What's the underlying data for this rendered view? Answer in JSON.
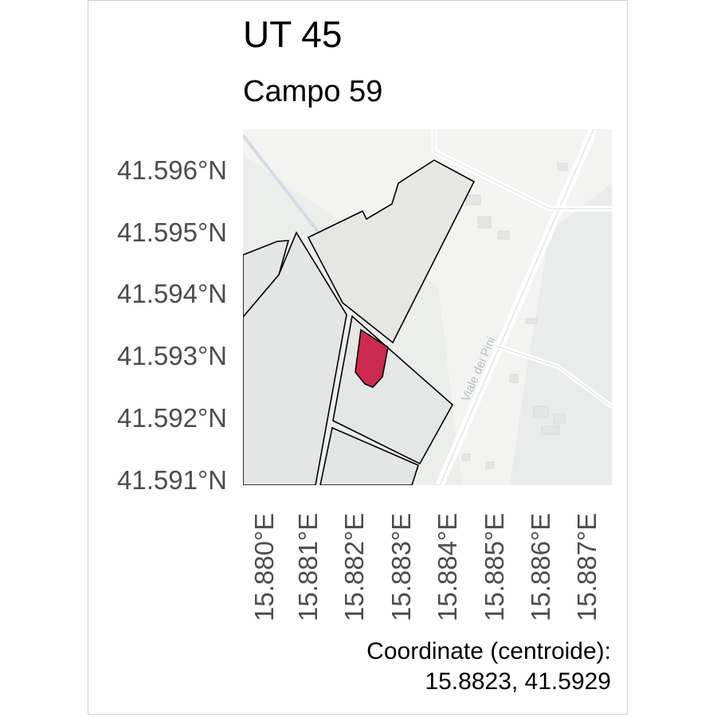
{
  "title": "UT 45",
  "subtitle": "Campo 59",
  "basemap": {
    "road_label": "Viale dei Pini"
  },
  "axes": {
    "y_ticks": [
      "41.596°N",
      "41.595°N",
      "41.594°N",
      "41.593°N",
      "41.592°N",
      "41.591°N"
    ],
    "x_ticks": [
      "15.880°E",
      "15.881°E",
      "15.882°E",
      "15.883°E",
      "15.884°E",
      "15.885°E",
      "15.886°E",
      "15.887°E"
    ],
    "y_values": [
      41.596,
      41.595,
      41.594,
      41.593,
      41.592,
      41.591
    ],
    "x_values": [
      15.88,
      15.881,
      15.882,
      15.883,
      15.884,
      15.885,
      15.886,
      15.887
    ]
  },
  "caption": {
    "line1": "Coordinate (centroide):",
    "line2": "15.8823, 41.5929"
  },
  "colors": {
    "highlight_parcel": "#cc2a50",
    "parcel_fill": "#e3e6e4",
    "parcel_stroke": "#000000",
    "basemap_bg": "#f3f4f2",
    "tick_text": "#4d4d4d"
  }
}
